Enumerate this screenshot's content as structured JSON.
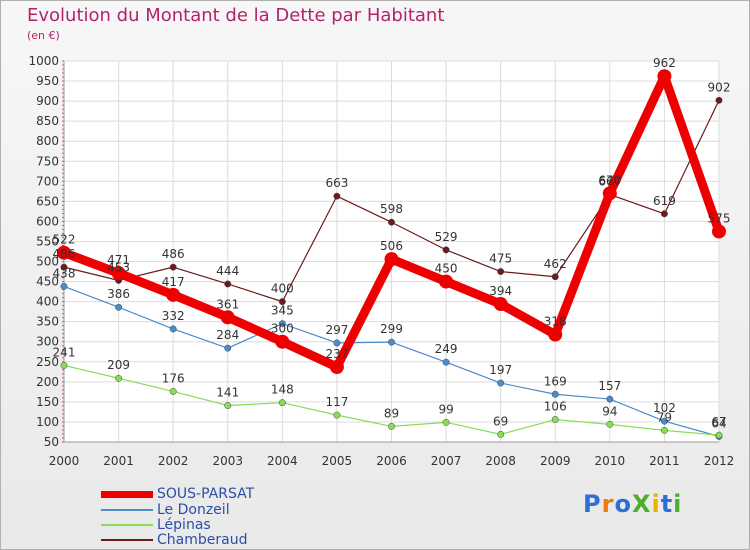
{
  "title": "Evolution du Montant de la Dette par Habitant",
  "subtitle": "(en €)",
  "brand": "ProXiti",
  "chart_data": {
    "type": "line",
    "title": "Evolution du Montant de la Dette par Habitant",
    "ylabel": "(en €)",
    "x": [
      "2000",
      "2001",
      "2002",
      "2003",
      "2004",
      "2005",
      "2006",
      "2007",
      "2008",
      "2009",
      "2010",
      "2011",
      "2012"
    ],
    "ylim": [
      50,
      1000
    ],
    "yticks": [
      50,
      100,
      150,
      200,
      250,
      300,
      350,
      400,
      450,
      500,
      550,
      600,
      650,
      700,
      750,
      800,
      850,
      900,
      950,
      1000
    ],
    "grid": true,
    "legend_position": "bottom-left",
    "series": [
      {
        "name": "SOUS-PARSAT",
        "color": "#ee0000",
        "values": [
          522,
          471,
          417,
          361,
          300,
          237,
          506,
          450,
          394,
          318,
          670,
          962,
          575
        ],
        "labels": [
          "522",
          "471",
          "417",
          "361",
          "300",
          "237",
          "506",
          "450",
          "394",
          "318",
          "670",
          "962",
          "575"
        ]
      },
      {
        "name": "Le Donzeil",
        "color": "#4a8ccc",
        "values": [
          438,
          386,
          332,
          284,
          345,
          297,
          299,
          249,
          197,
          169,
          157,
          102,
          64
        ],
        "labels": [
          "438",
          "386",
          "332",
          "284",
          "345",
          "297",
          "299",
          "249",
          "197",
          "169",
          "157",
          "102",
          "64"
        ]
      },
      {
        "name": "Lépinas",
        "color": "#88dd55",
        "values": [
          241,
          209,
          176,
          141,
          148,
          117,
          89,
          99,
          69,
          106,
          94,
          79,
          67
        ],
        "labels": [
          "241",
          "209",
          "176",
          "141",
          "148",
          "117",
          "89",
          "99",
          "69",
          "106",
          "94",
          "79",
          "67"
        ]
      },
      {
        "name": "Chamberaud",
        "color": "#6b1b1b",
        "values": [
          486,
          453,
          486,
          444,
          400,
          663,
          598,
          529,
          475,
          462,
          667,
          619,
          902
        ],
        "labels": [
          "486",
          "453",
          "486",
          "444",
          "400",
          "663",
          "598",
          "529",
          "475",
          "462",
          "667",
          "619",
          "902"
        ]
      }
    ]
  }
}
